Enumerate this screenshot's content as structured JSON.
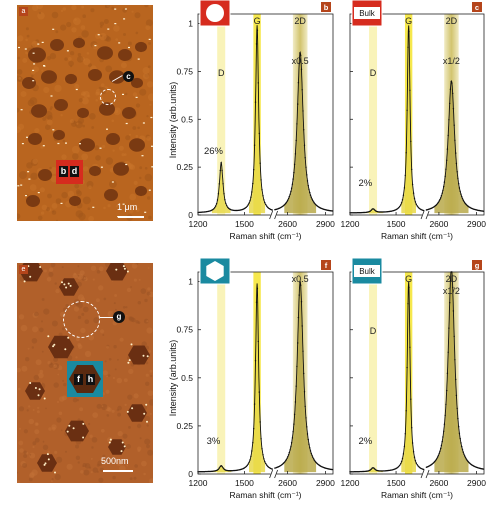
{
  "panels": {
    "a": {
      "letter": "a",
      "scale_label": "1 μm",
      "markers": [
        "b",
        "d",
        "c"
      ]
    },
    "e": {
      "letter": "e",
      "scale_label": "500nm",
      "markers": [
        "f",
        "h",
        "g"
      ]
    }
  },
  "colors": {
    "afm_base": "#b9651f",
    "afm_dark": "#6b2f0c",
    "hole_inside": "#7a3a12",
    "band_D": "#f7f0a8",
    "band_G": "#f5e63a",
    "band_2D": "#cdbd5e",
    "fill_peak": "#e8d84a",
    "fill_2D": "#b8a94a",
    "marker_red": "#d62b1e",
    "marker_teal": "#1a8aa0",
    "letter_box": "#b5451b"
  },
  "icons": {
    "b": "circle-hole-graphene-icon",
    "c": "bulk-graphite-icon",
    "f": "hexagon-hole-graphene-icon",
    "g": "bulk-graphite-icon"
  },
  "shared_axes": {
    "ylabel": "Intensity (arb.units)",
    "xlabel": "Raman shift (cm⁻¹)",
    "yticks": [
      "0",
      "0.25",
      "0.5",
      "0.75",
      "1"
    ],
    "xticks_left": [
      "1200",
      "1500"
    ],
    "xticks_right": [
      "2600",
      "2900"
    ]
  },
  "chart_data": [
    {
      "id": "b",
      "letter": "b",
      "type": "line",
      "icon_label": "",
      "band_labels": {
        "D": "D",
        "G": "G",
        "2D": "2D"
      },
      "annotations": {
        "D_ratio": "26%",
        "scale": "x0.5"
      },
      "ylim": [
        0,
        1.05
      ],
      "peaks": [
        {
          "band": "D",
          "center": 1350,
          "height": 0.26,
          "width": 28
        },
        {
          "band": "G",
          "center": 1582,
          "height": 0.98,
          "width": 24
        },
        {
          "band": "2D",
          "center": 2700,
          "height": 0.84,
          "width": 58
        }
      ]
    },
    {
      "id": "c",
      "letter": "c",
      "type": "line",
      "icon_label": "Bulk",
      "band_labels": {
        "D": "D",
        "G": "G",
        "2D": "2D"
      },
      "annotations": {
        "D_ratio": "2%",
        "scale": "x1/2"
      },
      "ylim": [
        0,
        1.05
      ],
      "peaks": [
        {
          "band": "D",
          "center": 1350,
          "height": 0.02,
          "width": 30
        },
        {
          "band": "G",
          "center": 1582,
          "height": 0.98,
          "width": 22
        },
        {
          "band": "2D",
          "center": 2700,
          "height": 0.69,
          "width": 62
        }
      ]
    },
    {
      "id": "f",
      "letter": "f",
      "type": "line",
      "icon_label": "",
      "band_labels": {
        "D": "",
        "G": "",
        "2D": ""
      },
      "annotations": {
        "D_ratio": "3%",
        "scale": "x0.5"
      },
      "ylim": [
        0,
        1.05
      ],
      "peaks": [
        {
          "band": "D",
          "center": 1350,
          "height": 0.03,
          "width": 30
        },
        {
          "band": "G",
          "center": 1582,
          "height": 0.98,
          "width": 24
        },
        {
          "band": "2D",
          "center": 2700,
          "height": 0.99,
          "width": 58
        }
      ]
    },
    {
      "id": "g",
      "letter": "g",
      "type": "line",
      "icon_label": "Bulk",
      "band_labels": {
        "D": "D",
        "G": "G",
        "2D": "2D"
      },
      "annotations": {
        "D_ratio": "2%",
        "scale": "x1/2"
      },
      "ylim": [
        0,
        1.05
      ],
      "peaks": [
        {
          "band": "D",
          "center": 1350,
          "height": 0.02,
          "width": 30
        },
        {
          "band": "G",
          "center": 1582,
          "height": 0.99,
          "width": 22
        },
        {
          "band": "2D",
          "center": 2700,
          "height": 1.06,
          "width": 62
        }
      ]
    }
  ]
}
